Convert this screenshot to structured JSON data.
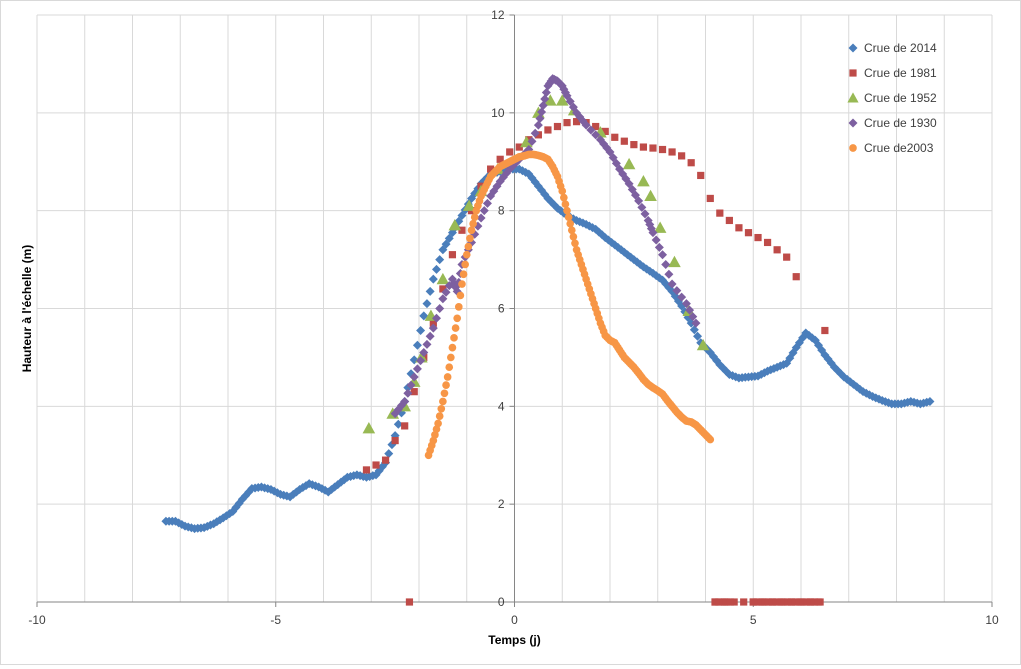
{
  "chart_data": {
    "type": "scatter",
    "title": "",
    "xlabel": "Temps (j)",
    "ylabel": "Hauteur à l'échelle (m)",
    "xlim": [
      -10,
      10
    ],
    "ylim": [
      0,
      12
    ],
    "x_ticks": [
      -10,
      -5,
      0,
      5,
      10
    ],
    "y_ticks": [
      0,
      2,
      4,
      6,
      8,
      10,
      12
    ],
    "x_minor_grid_step": 1,
    "grid": true,
    "legend_position": "top-right",
    "series": [
      {
        "name": "Crue de 2014",
        "color": "#4a7ebb",
        "marker": "diamond",
        "x": [
          -7.3,
          -7.1,
          -6.9,
          -6.7,
          -6.5,
          -6.3,
          -6.1,
          -5.9,
          -5.7,
          -5.5,
          -5.3,
          -5.1,
          -4.9,
          -4.7,
          -4.5,
          -4.3,
          -4.1,
          -3.9,
          -3.7,
          -3.5,
          -3.3,
          -3.1,
          -2.9,
          -2.7,
          -2.5,
          -2.3,
          -2.1,
          -1.9,
          -1.7,
          -1.5,
          -1.3,
          -1.1,
          -0.9,
          -0.7,
          -0.5,
          -0.3,
          -0.1,
          0.1,
          0.3,
          0.5,
          0.7,
          0.9,
          1.1,
          1.3,
          1.5,
          1.7,
          1.9,
          2.1,
          2.3,
          2.5,
          2.7,
          2.9,
          3.1,
          3.3,
          3.5,
          3.7,
          3.9,
          4.1,
          4.3,
          4.5,
          4.7,
          4.9,
          5.1,
          5.3,
          5.5,
          5.7,
          5.9,
          6.1,
          6.3,
          6.5,
          6.7,
          6.9,
          7.1,
          7.3,
          7.5,
          7.7,
          7.9,
          8.1,
          8.3,
          8.5,
          8.7
        ],
        "y": [
          1.65,
          1.65,
          1.55,
          1.5,
          1.52,
          1.6,
          1.72,
          1.85,
          2.1,
          2.32,
          2.35,
          2.3,
          2.2,
          2.15,
          2.3,
          2.42,
          2.35,
          2.25,
          2.4,
          2.55,
          2.6,
          2.55,
          2.6,
          2.85,
          3.4,
          4.1,
          4.95,
          5.85,
          6.6,
          7.2,
          7.55,
          7.9,
          8.25,
          8.55,
          8.75,
          8.8,
          8.85,
          8.85,
          8.75,
          8.5,
          8.25,
          8.05,
          7.9,
          7.8,
          7.72,
          7.62,
          7.45,
          7.3,
          7.15,
          7.0,
          6.85,
          6.72,
          6.58,
          6.35,
          6.05,
          5.7,
          5.3,
          5.1,
          4.85,
          4.65,
          4.58,
          4.6,
          4.62,
          4.72,
          4.8,
          4.88,
          5.2,
          5.5,
          5.35,
          5.05,
          4.8,
          4.6,
          4.45,
          4.3,
          4.2,
          4.12,
          4.05,
          4.05,
          4.1,
          4.05,
          4.1
        ]
      },
      {
        "name": "Crue de 1981",
        "color": "#be4b48",
        "marker": "square",
        "x": [
          -3.1,
          -2.9,
          -2.7,
          -2.5,
          -2.3,
          -2.1,
          -1.9,
          -1.7,
          -1.5,
          -1.3,
          -1.1,
          -0.9,
          -0.7,
          -0.5,
          -0.3,
          -0.1,
          0.1,
          0.3,
          0.5,
          0.7,
          0.9,
          1.1,
          1.3,
          1.5,
          1.7,
          1.9,
          2.1,
          2.3,
          2.5,
          2.7,
          2.9,
          3.1,
          3.3,
          3.5,
          3.7,
          3.9,
          4.1,
          4.3,
          4.5,
          4.7,
          4.9,
          5.1,
          5.3,
          5.5,
          5.7,
          5.9,
          6.5,
          -2.2,
          4.2,
          4.4,
          4.6,
          4.8,
          5.0,
          5.2,
          5.4,
          5.6,
          5.8,
          6.0,
          6.2,
          6.4
        ],
        "y": [
          2.7,
          2.8,
          2.9,
          3.3,
          3.6,
          4.3,
          5.0,
          5.7,
          6.4,
          7.1,
          7.6,
          8.0,
          8.5,
          8.85,
          9.05,
          9.2,
          9.3,
          9.45,
          9.55,
          9.65,
          9.72,
          9.8,
          9.82,
          9.8,
          9.72,
          9.62,
          9.5,
          9.42,
          9.35,
          9.3,
          9.28,
          9.25,
          9.2,
          9.12,
          8.98,
          8.72,
          8.25,
          7.95,
          7.8,
          7.65,
          7.55,
          7.45,
          7.35,
          7.2,
          7.05,
          6.65,
          5.55,
          0,
          0,
          0,
          0,
          0,
          0,
          0,
          0,
          0,
          0,
          0,
          0,
          0
        ]
      },
      {
        "name": "Crue de 1952",
        "color": "#98b954",
        "marker": "triangle",
        "x": [
          -3.05,
          -2.55,
          -2.3,
          -2.1,
          -1.95,
          -1.75,
          -1.5,
          -1.25,
          -0.95,
          -0.7,
          -0.35,
          0.25,
          0.5,
          0.75,
          1.0,
          1.25,
          1.8,
          2.4,
          2.7,
          2.85,
          3.05,
          3.35,
          3.65,
          3.95
        ],
        "y": [
          3.55,
          3.85,
          4.0,
          4.5,
          5.0,
          5.85,
          6.6,
          7.7,
          8.1,
          8.4,
          8.85,
          9.4,
          10.0,
          10.25,
          10.25,
          10.05,
          9.6,
          8.95,
          8.6,
          8.3,
          7.65,
          6.95,
          5.95,
          5.25
        ],
        "extra_points_note": ""
      },
      {
        "name": "Crue de 1930",
        "color": "#7d60a0",
        "marker": "diamond",
        "x": [
          -2.5,
          -2.3,
          -2.1,
          -1.9,
          -1.7,
          -1.5,
          -1.3,
          -1.2,
          -1.1,
          -0.9,
          -0.7,
          -0.5,
          -0.3,
          -0.1,
          0.1,
          0.3,
          0.5,
          0.6,
          0.7,
          0.8,
          0.9,
          1.0,
          1.1,
          1.3,
          1.5,
          1.8,
          2.0,
          2.2,
          2.4,
          2.6,
          2.8,
          2.9,
          3.1,
          3.3,
          3.6,
          3.8
        ],
        "y": [
          3.85,
          4.1,
          4.6,
          5.1,
          5.6,
          6.2,
          6.6,
          6.35,
          6.9,
          7.35,
          7.85,
          8.3,
          8.6,
          8.85,
          9.05,
          9.25,
          9.75,
          10.15,
          10.55,
          10.7,
          10.65,
          10.55,
          10.35,
          10.0,
          9.75,
          9.45,
          9.2,
          8.85,
          8.55,
          8.2,
          7.8,
          7.55,
          7.1,
          6.5,
          6.1,
          5.7
        ]
      },
      {
        "name": "Crue de2003",
        "color": "#f79646",
        "marker": "circle",
        "x": [
          -1.8,
          -1.7,
          -1.6,
          -1.5,
          -1.4,
          -1.3,
          -1.2,
          -1.1,
          -1.0,
          -0.9,
          -0.8,
          -0.7,
          -0.6,
          -0.5,
          -0.4,
          -0.3,
          -0.2,
          -0.1,
          0.0,
          0.1,
          0.2,
          0.3,
          0.4,
          0.5,
          0.6,
          0.7,
          0.8,
          0.9,
          1.0,
          1.1,
          1.2,
          1.3,
          1.4,
          1.5,
          1.6,
          1.7,
          1.8,
          1.9,
          2.0,
          2.1,
          2.2,
          2.3,
          2.4,
          2.5,
          2.6,
          2.7,
          2.8,
          2.9,
          3.0,
          3.1,
          3.2,
          3.3,
          3.4,
          3.5,
          3.6,
          3.7,
          3.8,
          3.9,
          4.0,
          4.1
        ],
        "y": [
          3.0,
          3.3,
          3.65,
          4.1,
          4.6,
          5.2,
          5.8,
          6.5,
          7.1,
          7.6,
          8.0,
          8.3,
          8.5,
          8.7,
          8.8,
          8.9,
          8.95,
          9.0,
          9.05,
          9.1,
          9.12,
          9.15,
          9.15,
          9.13,
          9.1,
          9.05,
          8.9,
          8.7,
          8.4,
          8.0,
          7.6,
          7.2,
          6.9,
          6.6,
          6.3,
          6.0,
          5.7,
          5.45,
          5.35,
          5.3,
          5.15,
          5.0,
          4.9,
          4.8,
          4.68,
          4.55,
          4.45,
          4.38,
          4.32,
          4.25,
          4.12,
          4.0,
          3.88,
          3.78,
          3.7,
          3.68,
          3.62,
          3.52,
          3.42,
          3.32
        ]
      }
    ]
  }
}
